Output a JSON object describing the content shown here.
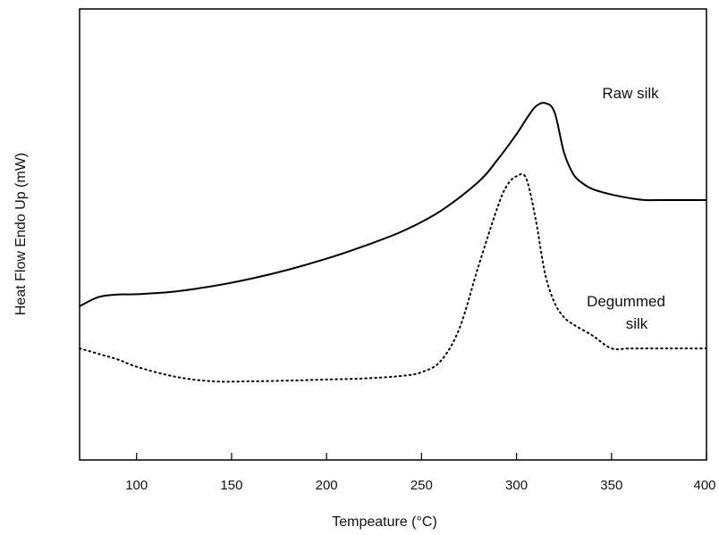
{
  "chart_data": {
    "type": "line",
    "title": "",
    "xlabel": "Tempeature (°C)",
    "ylabel": "Heat Flow Endo Up (mW)",
    "xlim": [
      70,
      400
    ],
    "ylim": [
      0,
      1
    ],
    "xticks": [
      "100",
      "150",
      "200",
      "250",
      "300",
      "350",
      "400"
    ],
    "grid": false,
    "series": [
      {
        "name": "Raw silk",
        "label_lines": [
          "Raw silk"
        ],
        "style": "solid",
        "color": "#000000",
        "x": [
          70,
          80,
          90,
          100,
          120,
          140,
          160,
          180,
          200,
          220,
          240,
          260,
          280,
          290,
          300,
          305,
          310,
          315,
          320,
          325,
          330,
          335,
          340,
          350,
          360,
          368,
          375,
          400
        ],
        "y": [
          0.31,
          0.335,
          0.342,
          0.343,
          0.35,
          0.365,
          0.385,
          0.41,
          0.44,
          0.475,
          0.515,
          0.57,
          0.65,
          0.71,
          0.78,
          0.82,
          0.855,
          0.865,
          0.84,
          0.73,
          0.67,
          0.645,
          0.63,
          0.615,
          0.605,
          0.6,
          0.6,
          0.6
        ]
      },
      {
        "name": "Degummed silk",
        "label_lines": [
          "Degummed",
          "silk"
        ],
        "style": "dotted",
        "color": "#000000",
        "x": [
          70,
          80,
          90,
          100,
          120,
          140,
          160,
          180,
          200,
          220,
          240,
          250,
          260,
          270,
          280,
          290,
          295,
          300,
          305,
          310,
          315,
          320,
          325,
          330,
          340,
          350,
          360,
          380,
          400
        ],
        "y": [
          0.195,
          0.18,
          0.165,
          0.145,
          0.118,
          0.105,
          0.105,
          0.107,
          0.11,
          0.113,
          0.12,
          0.13,
          0.16,
          0.25,
          0.42,
          0.58,
          0.64,
          0.665,
          0.66,
          0.55,
          0.4,
          0.32,
          0.28,
          0.26,
          0.23,
          0.195,
          0.195,
          0.195,
          0.195
        ]
      }
    ]
  }
}
